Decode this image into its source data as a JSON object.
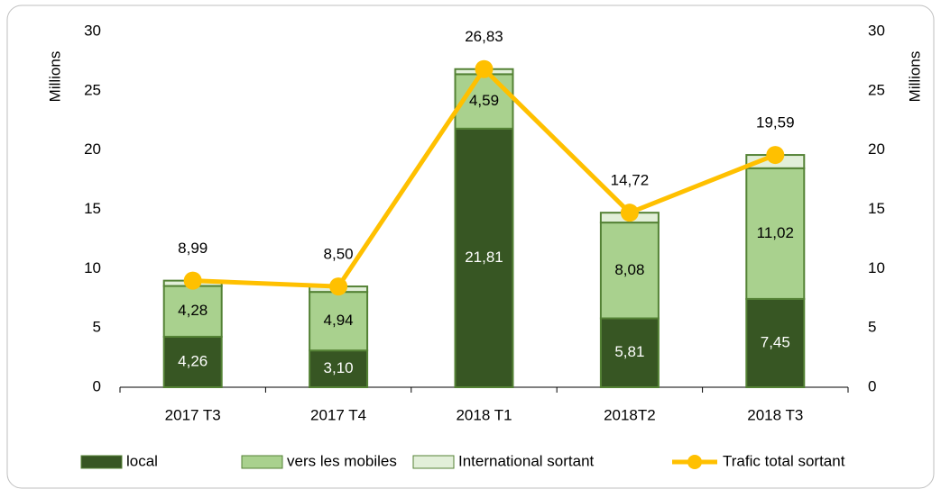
{
  "chart_data": {
    "type": "bar",
    "stacked": true,
    "categories": [
      "2017  T3",
      "2017  T4",
      "2018 T1",
      "2018T2",
      "2018 T3"
    ],
    "ylabel": "Millions",
    "y2label": "Millions",
    "ylim": [
      0,
      30
    ],
    "yticks": [
      0,
      5,
      10,
      15,
      20,
      25,
      30
    ],
    "y2lim": [
      0,
      30
    ],
    "y2ticks": [
      0,
      5,
      10,
      15,
      20,
      25,
      30
    ],
    "series": [
      {
        "name": "local",
        "type": "bar",
        "color": "#375623",
        "label_color": "#ffffff",
        "values": [
          4.26,
          3.1,
          21.81,
          5.81,
          7.45
        ],
        "value_labels": [
          "4,26",
          "3,10",
          "21,81",
          "5,81",
          "7,45"
        ]
      },
      {
        "name": "vers les mobiles",
        "type": "bar",
        "color": "#a9d18e",
        "label_color": "#000000",
        "values": [
          4.28,
          4.94,
          4.59,
          8.08,
          11.02
        ],
        "value_labels": [
          "4,28",
          "4,94",
          "4,59",
          "8,08",
          "11,02"
        ]
      },
      {
        "name": "International sortant",
        "type": "bar",
        "color": "#e2efd9",
        "values": [
          0.45,
          0.46,
          0.43,
          0.83,
          1.12
        ]
      },
      {
        "name": "Trafic total sortant",
        "type": "line",
        "axis": "y2",
        "color": "#ffc000",
        "values": [
          8.99,
          8.5,
          26.83,
          14.72,
          19.59
        ],
        "value_labels": [
          "8,99",
          "8,50",
          "26,83",
          "14,72",
          "19,59"
        ]
      }
    ]
  }
}
